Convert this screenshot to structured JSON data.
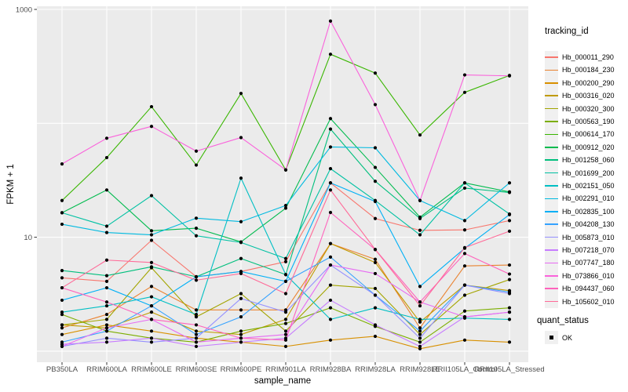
{
  "chart_data": {
    "type": "line",
    "title": "",
    "xlabel": "sample_name",
    "ylabel": "FPKM + 1",
    "y_scale": "log10",
    "ylim": [
      0.8,
      1100
    ],
    "grid": true,
    "legend_position": "right",
    "panel_bg": "#EBEBEB",
    "grid_color": "#FFFFFF",
    "axis_text_color": "#4D4D4D",
    "tick_color": "#333333",
    "point_color": "#000000",
    "y_ticks": [
      {
        "value": 1000,
        "label": "1000"
      },
      {
        "value": 10,
        "label": "10"
      }
    ],
    "y_gridlines": [
      1000,
      100,
      10,
      1
    ],
    "categories": [
      "PB350LA",
      "RRIM600LA",
      "RRIM600LE",
      "RRIM600SE",
      "RRIM600PE",
      "RRIM901LA",
      "RRIM928BA",
      "RRIM928LA",
      "RRIM928LE",
      "RRII105LA_Control",
      "RRII105LA_Stressed"
    ],
    "series": [
      {
        "name": "Hb_000011_290",
        "color": "#F8766D",
        "values": [
          4.4,
          4.1,
          9.4,
          4.5,
          5.0,
          6.1,
          30,
          14.6,
          11.5,
          11.6,
          14
        ]
      },
      {
        "name": "Hb_000184_230",
        "color": "#EA8331",
        "values": [
          1.6,
          2.1,
          3.7,
          2.3,
          2.3,
          2.3,
          8.8,
          6.4,
          1.6,
          5.6,
          5.7
        ]
      },
      {
        "name": "Hb_000200_290",
        "color": "#D89000",
        "values": [
          1.4,
          1.7,
          1.5,
          1.3,
          1.2,
          1.1,
          1.25,
          1.35,
          1.05,
          1.25,
          1.2
        ]
      },
      {
        "name": "Hb_000316_020",
        "color": "#C09B00",
        "values": [
          1.7,
          1.6,
          2.2,
          1.5,
          1.4,
          1.9,
          8.8,
          6.0,
          1.8,
          3.8,
          3.4
        ]
      },
      {
        "name": "Hb_000320_300",
        "color": "#A3A500",
        "values": [
          1.7,
          1.9,
          5.4,
          2.0,
          3.2,
          1.5,
          3.8,
          3.55,
          1.4,
          3.1,
          4.25
        ]
      },
      {
        "name": "Hb_000563_190",
        "color": "#7CAE00",
        "values": [
          2.1,
          1.5,
          1.3,
          1.2,
          1.5,
          1.75,
          2.4,
          1.65,
          1.2,
          2.25,
          2.4
        ]
      },
      {
        "name": "Hb_000614_170",
        "color": "#39B600",
        "values": [
          21,
          50,
          140,
          43,
          183,
          39,
          404,
          276,
          79,
          187,
          263
        ]
      },
      {
        "name": "Hb_000912_020",
        "color": "#00BB4E",
        "values": [
          16.4,
          26,
          11.4,
          12,
          9.1,
          18,
          110,
          41,
          15,
          30,
          25
        ]
      },
      {
        "name": "Hb_001258_060",
        "color": "#00BF7D",
        "values": [
          5.1,
          4.6,
          5.5,
          4.5,
          6.5,
          4.7,
          89,
          31,
          14.6,
          27,
          24.7
        ]
      },
      {
        "name": "Hb_001699_200",
        "color": "#00C1A3",
        "values": [
          16.4,
          12.5,
          23.2,
          10.3,
          9.0,
          6.5,
          40,
          21,
          10.5,
          30,
          16
        ]
      },
      {
        "name": "Hb_002151_050",
        "color": "#00BFC4",
        "values": [
          2.2,
          2.5,
          3.0,
          2.1,
          33,
          4.7,
          1.9,
          2.4,
          1.9,
          1.95,
          1.9
        ]
      },
      {
        "name": "Hb_002291_010",
        "color": "#00BAE0",
        "values": [
          13,
          11,
          10.5,
          14.7,
          13.7,
          19,
          62,
          61,
          21,
          14,
          30
        ]
      },
      {
        "name": "Hb_002835_100",
        "color": "#00B0F6",
        "values": [
          2.8,
          3.6,
          2.5,
          4.5,
          5.0,
          4.1,
          30,
          20.6,
          3.7,
          8,
          15.8
        ]
      },
      {
        "name": "Hb_004208_130",
        "color": "#35A2FF",
        "values": [
          1.2,
          1.5,
          2.5,
          1.4,
          2.0,
          4.1,
          6.7,
          3.1,
          1.5,
          3.8,
          3.3
        ]
      },
      {
        "name": "Hb_005873_010",
        "color": "#9590FF",
        "values": [
          1.1,
          1.3,
          1.2,
          1.3,
          2.9,
          2.2,
          5.7,
          3.1,
          1.3,
          3.8,
          3.2
        ]
      },
      {
        "name": "Hb_007218_070",
        "color": "#C77CFF",
        "values": [
          1.15,
          1.2,
          1.3,
          1.1,
          1.2,
          1.3,
          2.8,
          1.7,
          1.1,
          2.0,
          2.2
        ]
      },
      {
        "name": "Hb_007747_180",
        "color": "#E76BF3",
        "values": [
          1.1,
          1.6,
          1.9,
          1.2,
          1.3,
          1.4,
          5.7,
          4.8,
          2.7,
          2.0,
          2.2
        ]
      },
      {
        "name": "Hb_073866_010",
        "color": "#FA62DB",
        "values": [
          44,
          74,
          94,
          57,
          75,
          39,
          790,
          146,
          21,
          266,
          261
        ]
      },
      {
        "name": "Hb_094437_060",
        "color": "#FF62BC",
        "values": [
          3.6,
          2.7,
          1.9,
          1.7,
          1.3,
          1.25,
          16.5,
          7.8,
          2.7,
          7.2,
          4.75
        ]
      },
      {
        "name": "Hb_105602_010",
        "color": "#FF6A98",
        "values": [
          3.6,
          6.3,
          6.0,
          4.2,
          4.8,
          3.2,
          26,
          7.8,
          2.5,
          8.1,
          11.3
        ]
      }
    ]
  },
  "legend": {
    "tracking_title": "tracking_id",
    "quant_title": "quant_status",
    "quant_items": [
      {
        "label": "OK",
        "marker": "square",
        "color": "#000000"
      }
    ],
    "key_bg": "#F0F0F0"
  }
}
